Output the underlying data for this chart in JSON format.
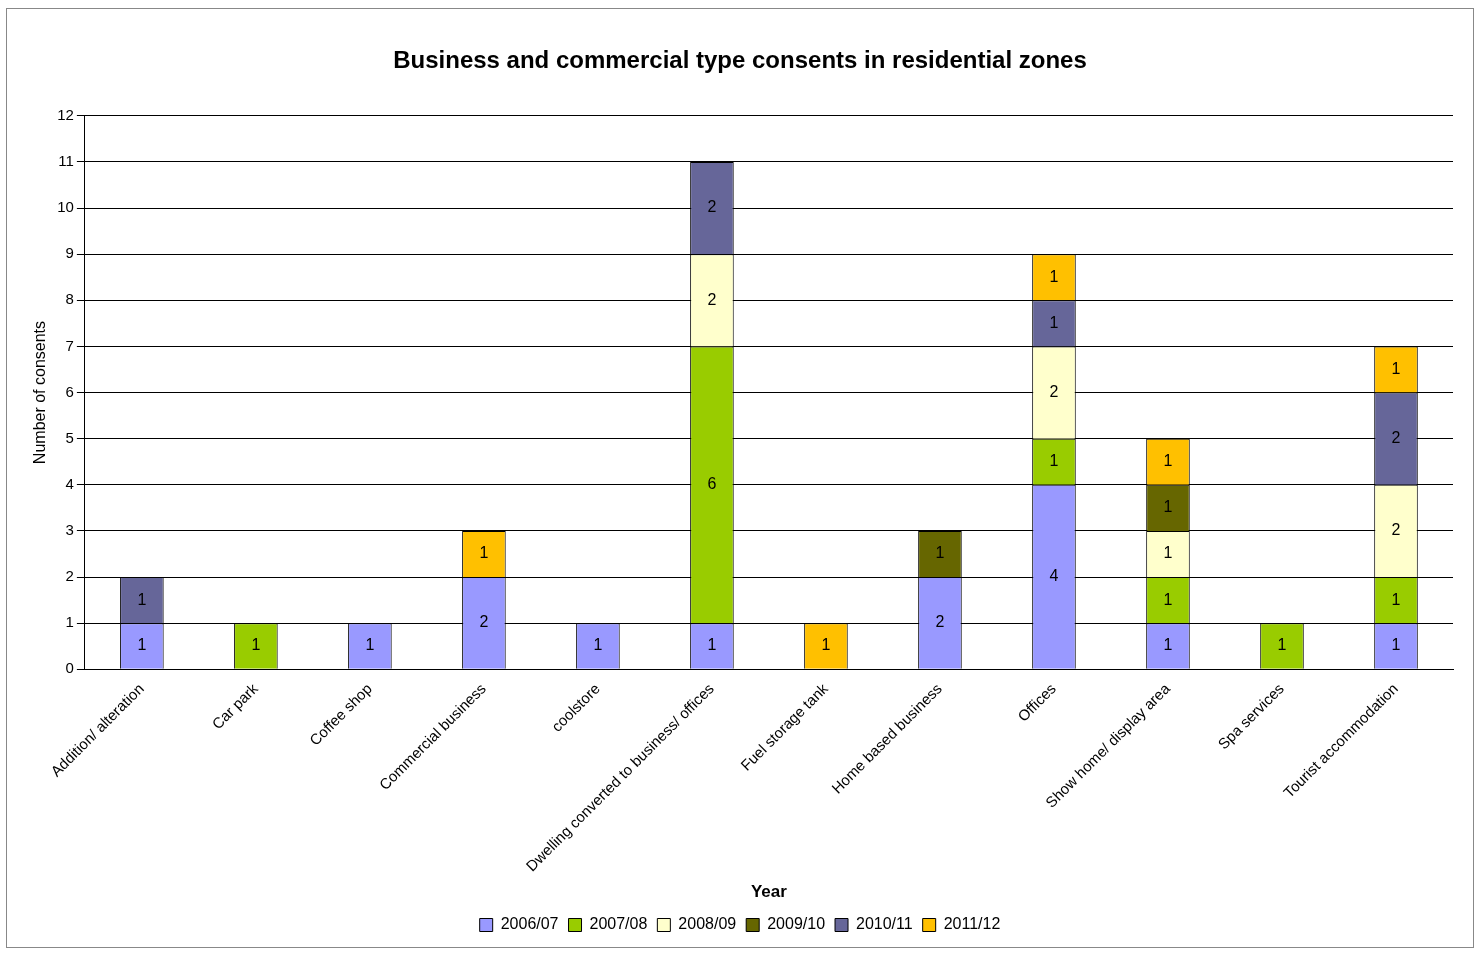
{
  "chart_data": {
    "type": "bar",
    "title": "Business and commercial type consents in residential zones",
    "xlabel": "Year",
    "ylabel": "Number of consents",
    "categories": [
      "Addition/ alteration",
      "Car park",
      "Coffee shop",
      "Commercial business",
      "coolstore",
      "Dwelling converted to business/ offices",
      "Fuel storage tank",
      "Home based business",
      "Offices",
      "Show home/ display area",
      "Spa services",
      "Tourist accommodation"
    ],
    "series": [
      {
        "name": "2006/07",
        "color": "#9999ff",
        "values": [
          1,
          null,
          1,
          2,
          1,
          1,
          null,
          2,
          4,
          1,
          null,
          1
        ]
      },
      {
        "name": "2007/08",
        "color": "#99cc00",
        "values": [
          null,
          1,
          null,
          null,
          null,
          6,
          null,
          null,
          1,
          1,
          1,
          1
        ]
      },
      {
        "name": "2008/09",
        "color": "#ffffcc",
        "values": [
          null,
          null,
          null,
          null,
          null,
          2,
          null,
          null,
          2,
          1,
          null,
          2
        ]
      },
      {
        "name": "2009/10",
        "color": "#666600",
        "values": [
          null,
          null,
          null,
          null,
          null,
          null,
          null,
          1,
          null,
          1,
          null,
          null
        ]
      },
      {
        "name": "2010/11",
        "color": "#666699",
        "values": [
          1,
          null,
          null,
          null,
          null,
          2,
          null,
          null,
          1,
          null,
          null,
          2
        ]
      },
      {
        "name": "2011/12",
        "color": "#ffc000",
        "values": [
          null,
          null,
          null,
          1,
          null,
          null,
          1,
          null,
          1,
          1,
          null,
          1
        ]
      }
    ],
    "stacked": true,
    "ylim": [
      0,
      12
    ],
    "yticks": [
      0,
      1,
      2,
      3,
      4,
      5,
      6,
      7,
      8,
      9,
      10,
      11,
      12
    ],
    "grid": "y",
    "legend": "bottom",
    "data_labels": true
  }
}
